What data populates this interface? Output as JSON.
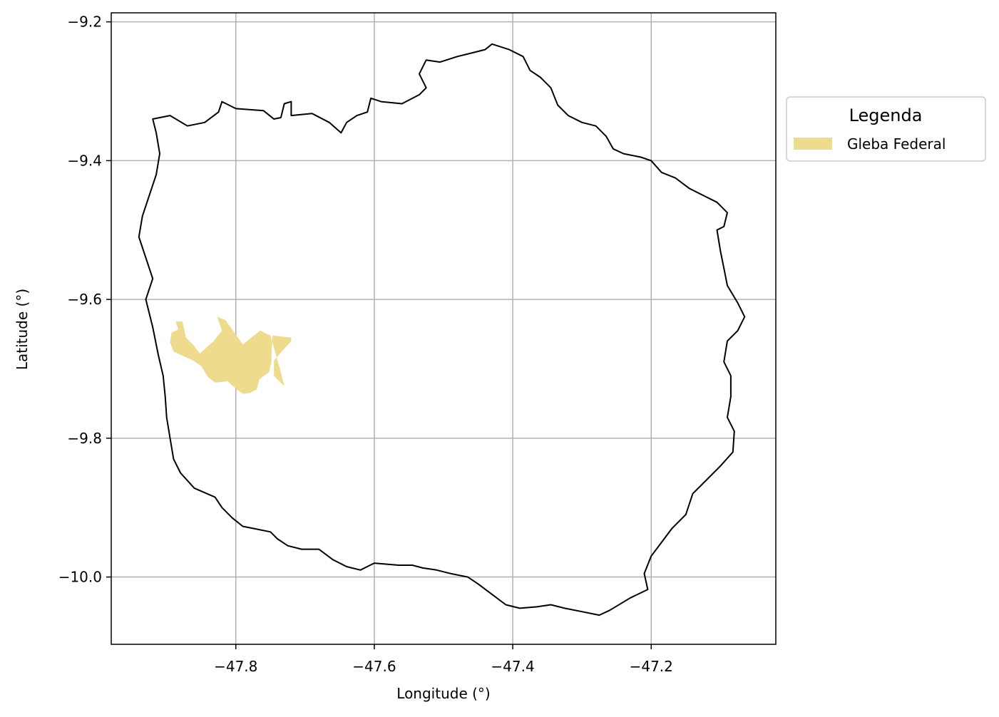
{
  "chart_data": {
    "type": "map",
    "xlabel": "Longitude (°)",
    "ylabel": "Latitude (°)",
    "xlim": [
      -47.98,
      -47.02
    ],
    "ylim": [
      -10.097,
      -9.187
    ],
    "xticks": [
      -47.8,
      -47.6,
      -47.4,
      -47.2
    ],
    "xtick_labels": [
      "−47.8",
      "−47.6",
      "−47.4",
      "−47.2"
    ],
    "yticks": [
      -9.2,
      -9.4,
      -9.6,
      -9.8,
      -10.0
    ],
    "ytick_labels": [
      "−9.2",
      "−9.4",
      "−9.6",
      "−9.8",
      "−10.0"
    ],
    "grid": true,
    "legend": {
      "title": "Legenda",
      "placement": "outside-right-top",
      "entries": [
        {
          "label": "Gleba Federal",
          "color": "#eedb8e"
        }
      ]
    },
    "colors": {
      "boundary": "#000000",
      "gleba": "#eedb8e",
      "grid": "#b0b0b0"
    },
    "boundary": [
      [
        -47.92,
        -9.34
      ],
      [
        -47.895,
        -9.335
      ],
      [
        -47.87,
        -9.35
      ],
      [
        -47.845,
        -9.345
      ],
      [
        -47.825,
        -9.33
      ],
      [
        -47.82,
        -9.315
      ],
      [
        -47.8,
        -9.325
      ],
      [
        -47.76,
        -9.328
      ],
      [
        -47.745,
        -9.34
      ],
      [
        -47.735,
        -9.338
      ],
      [
        -47.73,
        -9.318
      ],
      [
        -47.72,
        -9.315
      ],
      [
        -47.72,
        -9.335
      ],
      [
        -47.69,
        -9.332
      ],
      [
        -47.665,
        -9.345
      ],
      [
        -47.648,
        -9.36
      ],
      [
        -47.64,
        -9.345
      ],
      [
        -47.625,
        -9.335
      ],
      [
        -47.61,
        -9.33
      ],
      [
        -47.605,
        -9.31
      ],
      [
        -47.59,
        -9.315
      ],
      [
        -47.56,
        -9.318
      ],
      [
        -47.535,
        -9.305
      ],
      [
        -47.525,
        -9.295
      ],
      [
        -47.535,
        -9.275
      ],
      [
        -47.525,
        -9.255
      ],
      [
        -47.505,
        -9.258
      ],
      [
        -47.48,
        -9.25
      ],
      [
        -47.46,
        -9.245
      ],
      [
        -47.44,
        -9.24
      ],
      [
        -47.43,
        -9.232
      ],
      [
        -47.405,
        -9.24
      ],
      [
        -47.385,
        -9.25
      ],
      [
        -47.375,
        -9.27
      ],
      [
        -47.36,
        -9.28
      ],
      [
        -47.345,
        -9.295
      ],
      [
        -47.335,
        -9.32
      ],
      [
        -47.32,
        -9.335
      ],
      [
        -47.3,
        -9.345
      ],
      [
        -47.28,
        -9.35
      ],
      [
        -47.265,
        -9.365
      ],
      [
        -47.255,
        -9.383
      ],
      [
        -47.24,
        -9.39
      ],
      [
        -47.215,
        -9.395
      ],
      [
        -47.2,
        -9.4
      ],
      [
        -47.185,
        -9.417
      ],
      [
        -47.165,
        -9.425
      ],
      [
        -47.145,
        -9.44
      ],
      [
        -47.125,
        -9.45
      ],
      [
        -47.105,
        -9.46
      ],
      [
        -47.09,
        -9.475
      ],
      [
        -47.095,
        -9.495
      ],
      [
        -47.105,
        -9.5
      ],
      [
        -47.1,
        -9.53
      ],
      [
        -47.095,
        -9.555
      ],
      [
        -47.09,
        -9.58
      ],
      [
        -47.075,
        -9.605
      ],
      [
        -47.065,
        -9.625
      ],
      [
        -47.075,
        -9.645
      ],
      [
        -47.09,
        -9.66
      ],
      [
        -47.095,
        -9.69
      ],
      [
        -47.085,
        -9.71
      ],
      [
        -47.085,
        -9.74
      ],
      [
        -47.09,
        -9.77
      ],
      [
        -47.08,
        -9.79
      ],
      [
        -47.082,
        -9.82
      ],
      [
        -47.1,
        -9.84
      ],
      [
        -47.12,
        -9.86
      ],
      [
        -47.14,
        -9.88
      ],
      [
        -47.15,
        -9.91
      ],
      [
        -47.17,
        -9.93
      ],
      [
        -47.185,
        -9.95
      ],
      [
        -47.2,
        -9.97
      ],
      [
        -47.21,
        -9.995
      ],
      [
        -47.205,
        -10.018
      ],
      [
        -47.23,
        -10.03
      ],
      [
        -47.26,
        -10.048
      ],
      [
        -47.275,
        -10.055
      ],
      [
        -47.3,
        -10.05
      ],
      [
        -47.325,
        -10.045
      ],
      [
        -47.345,
        -10.04
      ],
      [
        -47.365,
        -10.043
      ],
      [
        -47.39,
        -10.045
      ],
      [
        -47.41,
        -10.04
      ],
      [
        -47.43,
        -10.025
      ],
      [
        -47.45,
        -10.01
      ],
      [
        -47.465,
        -10.0
      ],
      [
        -47.49,
        -9.995
      ],
      [
        -47.51,
        -9.99
      ],
      [
        -47.53,
        -9.987
      ],
      [
        -47.545,
        -9.983
      ],
      [
        -47.565,
        -9.983
      ],
      [
        -47.6,
        -9.98
      ],
      [
        -47.62,
        -9.99
      ],
      [
        -47.64,
        -9.985
      ],
      [
        -47.66,
        -9.975
      ],
      [
        -47.68,
        -9.96
      ],
      [
        -47.705,
        -9.96
      ],
      [
        -47.725,
        -9.955
      ],
      [
        -47.74,
        -9.945
      ],
      [
        -47.75,
        -9.935
      ],
      [
        -47.775,
        -9.93
      ],
      [
        -47.79,
        -9.927
      ],
      [
        -47.805,
        -9.915
      ],
      [
        -47.82,
        -9.9
      ],
      [
        -47.83,
        -9.885
      ],
      [
        -47.86,
        -9.872
      ],
      [
        -47.88,
        -9.85
      ],
      [
        -47.89,
        -9.83
      ],
      [
        -47.895,
        -9.8
      ],
      [
        -47.9,
        -9.77
      ],
      [
        -47.902,
        -9.74
      ],
      [
        -47.905,
        -9.71
      ],
      [
        -47.912,
        -9.68
      ],
      [
        -47.92,
        -9.64
      ],
      [
        -47.93,
        -9.6
      ],
      [
        -47.92,
        -9.57
      ],
      [
        -47.93,
        -9.54
      ],
      [
        -47.94,
        -9.51
      ],
      [
        -47.935,
        -9.48
      ],
      [
        -47.925,
        -9.45
      ],
      [
        -47.915,
        -9.42
      ],
      [
        -47.91,
        -9.39
      ],
      [
        -47.915,
        -9.36
      ],
      [
        -47.92,
        -9.34
      ]
    ],
    "gleba": [
      [
        -47.883,
        -9.643
      ],
      [
        -47.887,
        -9.632
      ],
      [
        -47.877,
        -9.632
      ],
      [
        -47.872,
        -9.655
      ],
      [
        -47.862,
        -9.665
      ],
      [
        -47.852,
        -9.678
      ],
      [
        -47.832,
        -9.66
      ],
      [
        -47.82,
        -9.645
      ],
      [
        -47.827,
        -9.625
      ],
      [
        -47.815,
        -9.63
      ],
      [
        -47.79,
        -9.665
      ],
      [
        -47.765,
        -9.645
      ],
      [
        -47.75,
        -9.652
      ],
      [
        -47.735,
        -9.705
      ],
      [
        -47.73,
        -9.725
      ],
      [
        -47.745,
        -9.71
      ],
      [
        -47.745,
        -9.688
      ],
      [
        -47.72,
        -9.66
      ],
      [
        -47.72,
        -9.655
      ],
      [
        -47.747,
        -9.652
      ],
      [
        -47.749,
        -9.692
      ],
      [
        -47.752,
        -9.705
      ],
      [
        -47.766,
        -9.715
      ],
      [
        -47.77,
        -9.73
      ],
      [
        -47.78,
        -9.735
      ],
      [
        -47.79,
        -9.736
      ],
      [
        -47.798,
        -9.73
      ],
      [
        -47.812,
        -9.718
      ],
      [
        -47.83,
        -9.72
      ],
      [
        -47.84,
        -9.712
      ],
      [
        -47.85,
        -9.696
      ],
      [
        -47.862,
        -9.688
      ],
      [
        -47.875,
        -9.682
      ],
      [
        -47.89,
        -9.675
      ],
      [
        -47.895,
        -9.662
      ],
      [
        -47.893,
        -9.648
      ],
      [
        -47.883,
        -9.643
      ]
    ]
  }
}
